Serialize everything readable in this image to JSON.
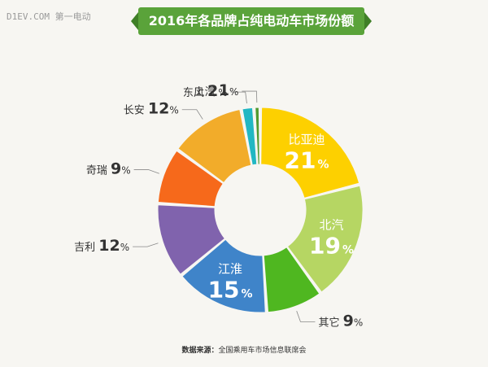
{
  "watermark": "D1EV.COM 第一电动",
  "chart_data": {
    "type": "pie",
    "title": "2016年各品牌占纯电动车市场份额",
    "categories": [
      "比亚迪",
      "北汽",
      "其它",
      "江淮",
      "吉利",
      "奇瑞",
      "长安",
      "东风",
      "上汽"
    ],
    "values": [
      21,
      19,
      9,
      15,
      12,
      9,
      12,
      2,
      1
    ],
    "unit": "%",
    "colors": [
      "#fdd000",
      "#b6d663",
      "#4fb720",
      "#3f84c9",
      "#8063ad",
      "#f6691b",
      "#f2ac2a",
      "#21b7c3",
      "#4f9a2e"
    ],
    "donut": true,
    "label_placement": [
      "inside",
      "inside",
      "outside",
      "inside",
      "outside",
      "outside",
      "outside",
      "outside",
      "outside"
    ]
  },
  "source": {
    "label": "数据来源：",
    "text": "全国乘用车市场信息联席会"
  }
}
